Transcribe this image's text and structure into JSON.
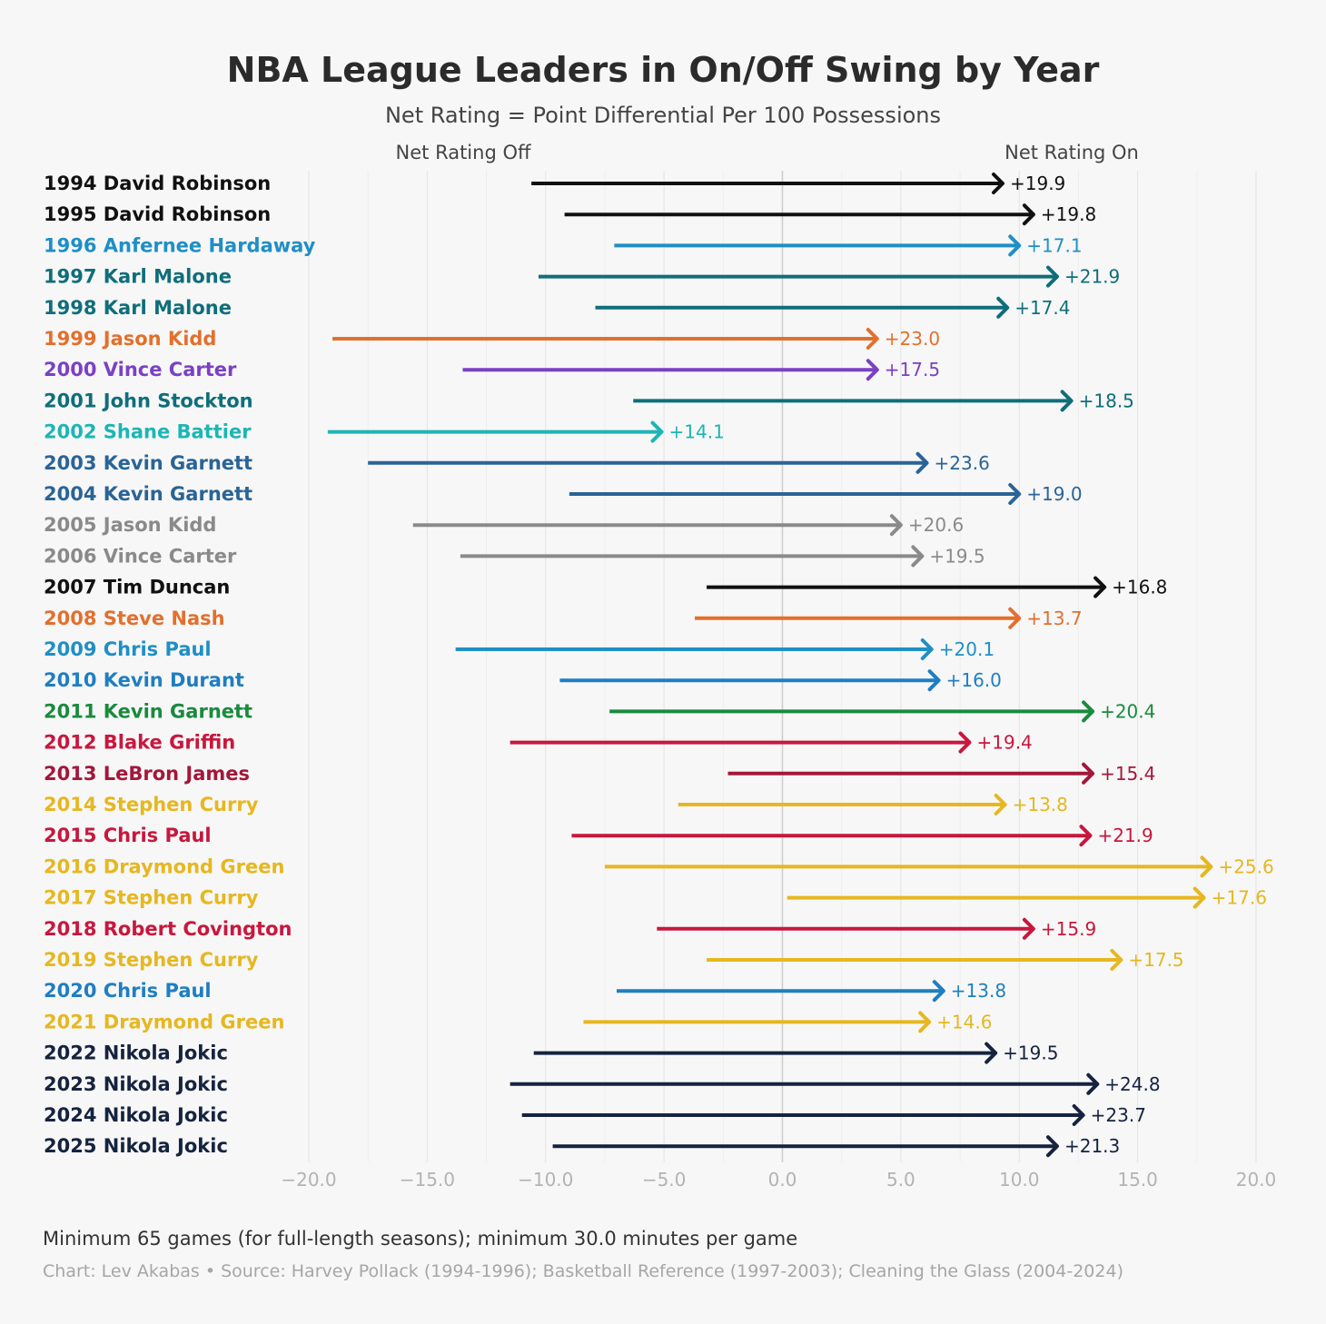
{
  "header": {
    "title": "NBA League Leaders in On/Off Swing by Year",
    "subtitle": "Net Rating = Point Differential Per 100 Possessions",
    "off_label": "Net Rating Off",
    "on_label": "Net Rating On"
  },
  "footer": {
    "note": "Minimum 65 games (for full-length seasons); minimum 30.0 minutes per game",
    "credit": "Chart: Lev Akabas • Source: Harvey Pollack (1994-1996); Basketball Reference (1997-2003); Cleaning the Glass (2004-2024)"
  },
  "chart_data": {
    "type": "arrow-range",
    "title": "NBA League Leaders in On/Off Swing by Year",
    "subtitle": "Net Rating = Point Differential Per 100 Possessions",
    "xlim": [
      -20,
      20
    ],
    "ticks": [
      -20,
      -15,
      -10,
      -5,
      0,
      5,
      10,
      15,
      20
    ],
    "tick_labels": [
      "−20.0",
      "−15.0",
      "−10.0",
      "−5.0",
      "0.0",
      "5.0",
      "10.0",
      "15.0",
      "20.0"
    ],
    "grid": true,
    "series_labels": {
      "start": "Net Rating Off",
      "end": "Net Rating On"
    },
    "rows": [
      {
        "label": "1994 David Robinson",
        "off": -10.6,
        "on": 9.3,
        "swing": "+19.9",
        "color": "#111111"
      },
      {
        "label": "1995 David Robinson",
        "off": -9.2,
        "on": 10.6,
        "swing": "+19.8",
        "color": "#111111"
      },
      {
        "label": "1996 Anfernee Hardaway",
        "off": -7.1,
        "on": 10.0,
        "swing": "+17.1",
        "color": "#1f8fc6"
      },
      {
        "label": "1997 Karl Malone",
        "off": -10.3,
        "on": 11.6,
        "swing": "+21.9",
        "color": "#0f6e7a"
      },
      {
        "label": "1998 Karl Malone",
        "off": -7.9,
        "on": 9.5,
        "swing": "+17.4",
        "color": "#0f6e7a"
      },
      {
        "label": "1999 Jason Kidd",
        "off": -19.0,
        "on": 4.0,
        "swing": "+23.0",
        "color": "#e2702d"
      },
      {
        "label": "2000 Vince Carter",
        "off": -13.5,
        "on": 4.0,
        "swing": "+17.5",
        "color": "#7b40c4"
      },
      {
        "label": "2001 John Stockton",
        "off": -6.3,
        "on": 12.2,
        "swing": "+18.5",
        "color": "#0f6e7a"
      },
      {
        "label": "2002 Shane Battier",
        "off": -19.2,
        "on": -5.1,
        "swing": "+14.1",
        "color": "#1db5b5"
      },
      {
        "label": "2003 Kevin Garnett",
        "off": -17.5,
        "on": 6.1,
        "swing": "+23.6",
        "color": "#2a6496"
      },
      {
        "label": "2004 Kevin Garnett",
        "off": -9.0,
        "on": 10.0,
        "swing": "+19.0",
        "color": "#2a6496"
      },
      {
        "label": "2005 Jason Kidd",
        "off": -15.6,
        "on": 5.0,
        "swing": "+20.6",
        "color": "#8a8a8a"
      },
      {
        "label": "2006 Vince Carter",
        "off": -13.6,
        "on": 5.9,
        "swing": "+19.5",
        "color": "#8a8a8a"
      },
      {
        "label": "2007 Tim Duncan",
        "off": -3.2,
        "on": 13.6,
        "swing": "+16.8",
        "color": "#111111"
      },
      {
        "label": "2008 Steve Nash",
        "off": -3.7,
        "on": 10.0,
        "swing": "+13.7",
        "color": "#e2702d"
      },
      {
        "label": "2009 Chris Paul",
        "off": -13.8,
        "on": 6.3,
        "swing": "+20.1",
        "color": "#1f8fc6"
      },
      {
        "label": "2010 Kevin Durant",
        "off": -9.4,
        "on": 6.6,
        "swing": "+16.0",
        "color": "#1f7ec2"
      },
      {
        "label": "2011 Kevin Garnett",
        "off": -7.3,
        "on": 13.1,
        "swing": "+20.4",
        "color": "#1a8a3e"
      },
      {
        "label": "2012 Blake Griffin",
        "off": -11.5,
        "on": 7.9,
        "swing": "+19.4",
        "color": "#c8173d"
      },
      {
        "label": "2013 LeBron James",
        "off": -2.3,
        "on": 13.1,
        "swing": "+15.4",
        "color": "#a3173a"
      },
      {
        "label": "2014 Stephen Curry",
        "off": -4.4,
        "on": 9.4,
        "swing": "+13.8",
        "color": "#e6b720"
      },
      {
        "label": "2015 Chris Paul",
        "off": -8.9,
        "on": 13.0,
        "swing": "+21.9",
        "color": "#c8173d"
      },
      {
        "label": "2016 Draymond Green",
        "off": -7.5,
        "on": 18.1,
        "swing": "+25.6",
        "color": "#e6b720"
      },
      {
        "label": "2017 Stephen Curry",
        "off": 0.2,
        "on": 17.8,
        "swing": "+17.6",
        "color": "#e6b720"
      },
      {
        "label": "2018 Robert Covington",
        "off": -5.3,
        "on": 10.6,
        "swing": "+15.9",
        "color": "#c8173d"
      },
      {
        "label": "2019 Stephen Curry",
        "off": -3.2,
        "on": 14.3,
        "swing": "+17.5",
        "color": "#e6b720"
      },
      {
        "label": "2020 Chris Paul",
        "off": -7.0,
        "on": 6.8,
        "swing": "+13.8",
        "color": "#1f7ec2"
      },
      {
        "label": "2021 Draymond Green",
        "off": -8.4,
        "on": 6.2,
        "swing": "+14.6",
        "color": "#e6b720"
      },
      {
        "label": "2022 Nikola Jokic",
        "off": -10.5,
        "on": 9.0,
        "swing": "+19.5",
        "color": "#15233f"
      },
      {
        "label": "2023 Nikola Jokic",
        "off": -11.5,
        "on": 13.3,
        "swing": "+24.8",
        "color": "#15233f"
      },
      {
        "label": "2024 Nikola Jokic",
        "off": -11.0,
        "on": 12.7,
        "swing": "+23.7",
        "color": "#15233f"
      },
      {
        "label": "2025 Nikola Jokic",
        "off": -9.7,
        "on": 11.6,
        "swing": "+21.3",
        "color": "#15233f"
      }
    ]
  }
}
